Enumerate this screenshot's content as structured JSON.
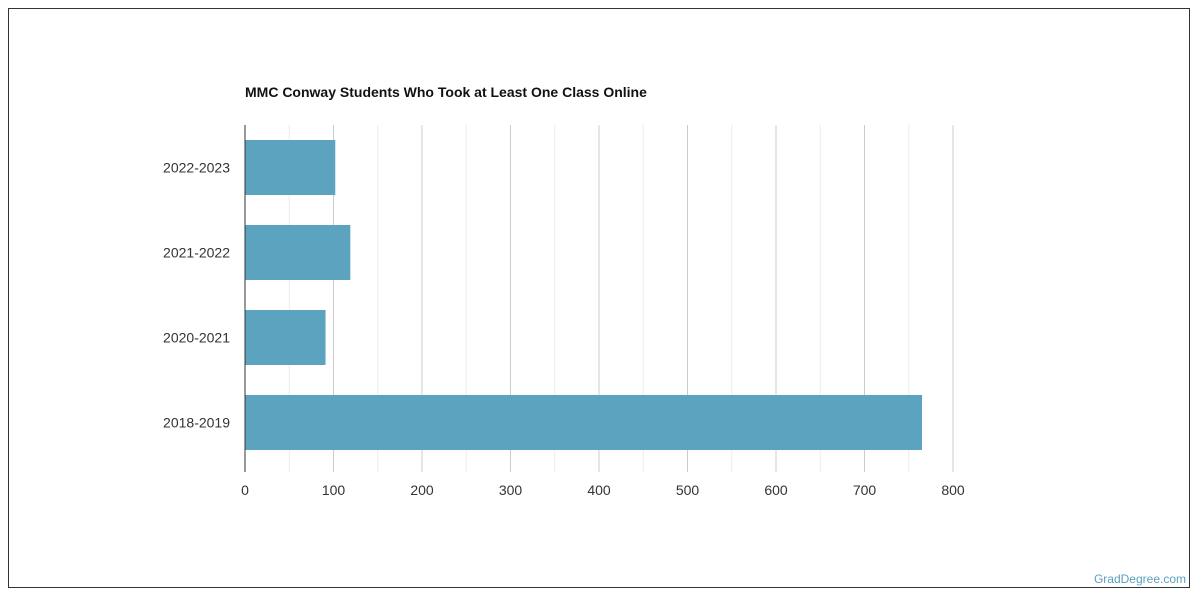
{
  "footer": {
    "watermark": "GradDegree.com"
  },
  "chart_data": {
    "type": "bar",
    "orientation": "horizontal",
    "title": "MMC Conway Students Who Took at Least One Class Online",
    "categories": [
      "2022-2023",
      "2021-2022",
      "2020-2021",
      "2018-2019"
    ],
    "values": [
      102,
      119,
      91,
      765
    ],
    "xlim": [
      0,
      800
    ],
    "xticks": [
      0,
      100,
      200,
      300,
      400,
      500,
      600,
      700,
      800
    ],
    "xticks_labels": [
      "0",
      "100",
      "200",
      "300",
      "400",
      "500",
      "600",
      "700",
      "800"
    ],
    "xlabel": "",
    "ylabel": "",
    "grid": true,
    "bar_color": "#5ca3bf",
    "grid_color": "#dddddd"
  }
}
